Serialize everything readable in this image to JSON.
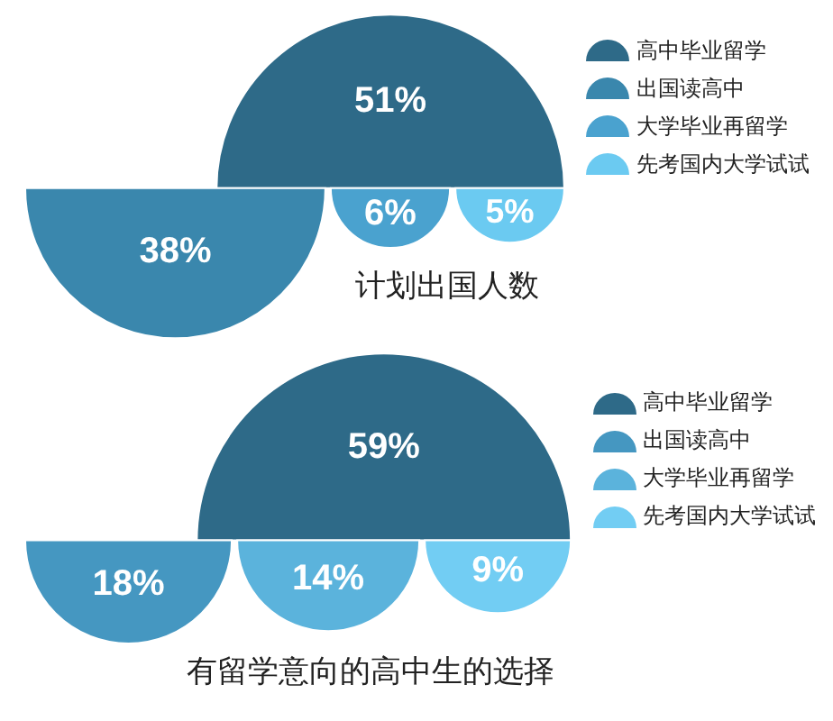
{
  "chart_data": [
    {
      "type": "other",
      "title": "计划出国人数",
      "categories": [
        "高中毕业留学",
        "出国读高中",
        "大学毕业再留学",
        "先考国内大学试试"
      ],
      "values": [
        51,
        38,
        6,
        5
      ],
      "colors": [
        "#2e6a88",
        "#3a87ad",
        "#4aa2cf",
        "#6bcaf1"
      ],
      "value_labels": [
        "51%",
        "38%",
        "6%",
        "5%"
      ]
    },
    {
      "type": "other",
      "title": "有留学意向的高中生的选择",
      "categories": [
        "高中毕业留学",
        "出国读高中",
        "大学毕业再留学",
        "先考国内大学试试"
      ],
      "values": [
        59,
        18,
        14,
        9
      ],
      "colors": [
        "#2e6a88",
        "#4597c1",
        "#5bb3dc",
        "#72cdf3"
      ],
      "value_labels": [
        "59%",
        "18%",
        "14%",
        "9%"
      ]
    }
  ]
}
